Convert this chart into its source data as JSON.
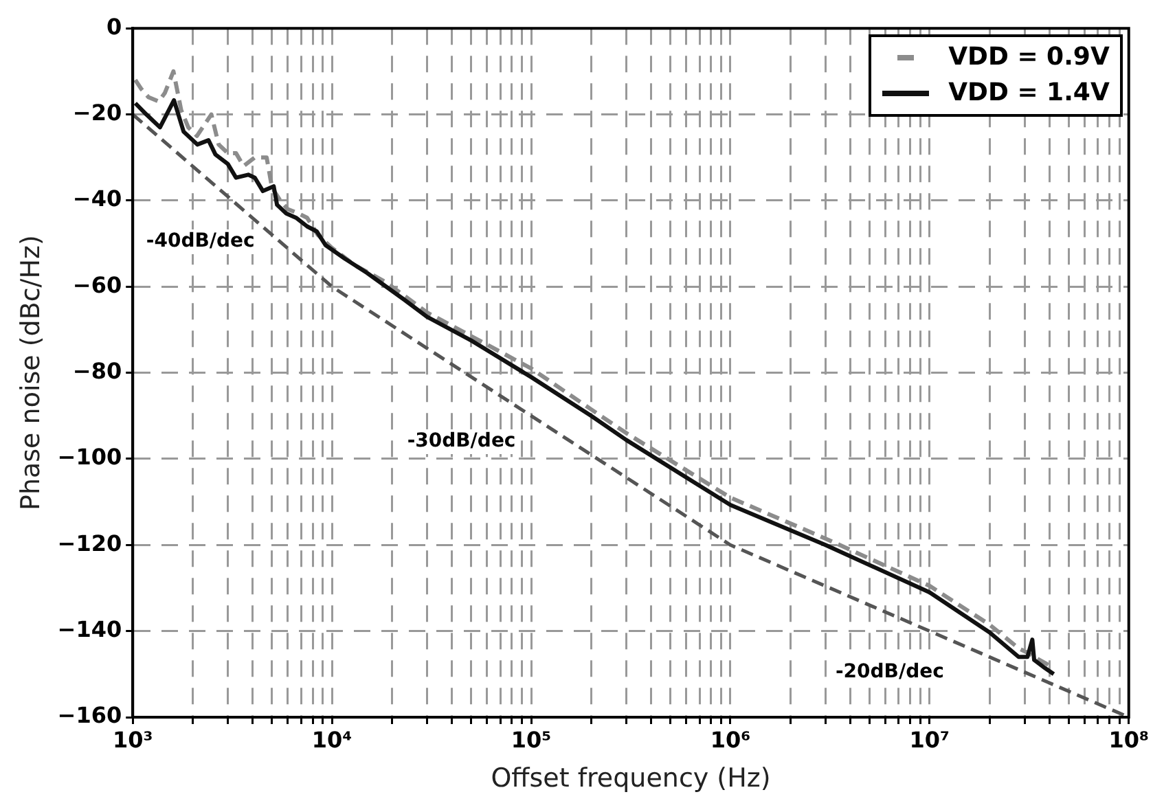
{
  "chart_data": {
    "type": "line",
    "xlabel": "Offset frequency (Hz)",
    "ylabel": "Phase noise (dBc/Hz)",
    "log": "x",
    "grid": true,
    "legend": "top right",
    "xlim": [
      1000,
      100000000
    ],
    "ylim": [
      -160,
      0
    ],
    "xticks": [
      {
        "value": 1000,
        "label": "10³"
      },
      {
        "value": 2000,
        "label": null
      },
      {
        "value": 3000,
        "label": null
      },
      {
        "value": 4000,
        "label": null
      },
      {
        "value": 5000,
        "label": null
      },
      {
        "value": 6000,
        "label": null
      },
      {
        "value": 7000,
        "label": null
      },
      {
        "value": 8000,
        "label": null
      },
      {
        "value": 9000,
        "label": null
      },
      {
        "value": 10000,
        "label": "10⁴"
      },
      {
        "value": 20000,
        "label": null
      },
      {
        "value": 30000,
        "label": null
      },
      {
        "value": 40000,
        "label": null
      },
      {
        "value": 50000,
        "label": null
      },
      {
        "value": 60000,
        "label": null
      },
      {
        "value": 70000,
        "label": null
      },
      {
        "value": 80000,
        "label": null
      },
      {
        "value": 90000,
        "label": null
      },
      {
        "value": 100000,
        "label": "10⁵"
      },
      {
        "value": 200000,
        "label": null
      },
      {
        "value": 300000,
        "label": null
      },
      {
        "value": 400000,
        "label": null
      },
      {
        "value": 500000,
        "label": null
      },
      {
        "value": 600000,
        "label": null
      },
      {
        "value": 700000,
        "label": null
      },
      {
        "value": 800000,
        "label": null
      },
      {
        "value": 900000,
        "label": null
      },
      {
        "value": 1000000,
        "label": "10⁶"
      },
      {
        "value": 2000000,
        "label": null
      },
      {
        "value": 3000000,
        "label": null
      },
      {
        "value": 4000000,
        "label": null
      },
      {
        "value": 5000000,
        "label": null
      },
      {
        "value": 6000000,
        "label": null
      },
      {
        "value": 7000000,
        "label": null
      },
      {
        "value": 8000000,
        "label": null
      },
      {
        "value": 9000000,
        "label": null
      },
      {
        "value": 10000000,
        "label": "10⁷"
      },
      {
        "value": 20000000,
        "label": null
      },
      {
        "value": 30000000,
        "label": null
      },
      {
        "value": 40000000,
        "label": null
      },
      {
        "value": 50000000,
        "label": null
      },
      {
        "value": 60000000,
        "label": null
      },
      {
        "value": 70000000,
        "label": null
      },
      {
        "value": 80000000,
        "label": null
      },
      {
        "value": 90000000,
        "label": null
      },
      {
        "value": 100000000,
        "label": "10⁸"
      }
    ],
    "yticks": [
      {
        "value": -160,
        "label": "−160"
      },
      {
        "value": -140,
        "label": "−140"
      },
      {
        "value": -120,
        "label": "−120"
      },
      {
        "value": -100,
        "label": "−100"
      },
      {
        "value": -80,
        "label": "−80"
      },
      {
        "value": -60,
        "label": "−60"
      },
      {
        "value": -40,
        "label": "−40"
      },
      {
        "value": -20,
        "label": "−20"
      },
      0
    ],
    "series": [
      {
        "name": "VDD = 0.9V",
        "color": "#8c8c8c",
        "line_style": "dashed",
        "x": [
          1030,
          1100,
          1200,
          1350,
          1450,
          1600,
          1750,
          1900,
          2100,
          2480,
          2700,
          3000,
          3300,
          3600,
          4100,
          4700,
          5000,
          5500,
          6000,
          6800,
          7500,
          8500,
          10000,
          13000,
          18700,
          30000,
          50000,
          100000,
          200000,
          300000,
          1000000,
          3000000,
          10000000,
          20000000,
          28000000,
          31000000,
          35000000,
          40000000
        ],
        "values": [
          -12,
          -14,
          -16,
          -17,
          -15,
          -10,
          -19,
          -23,
          -25,
          -20,
          -27,
          -29,
          -29,
          -32,
          -30,
          -30,
          -37,
          -40,
          -42,
          -43,
          -44,
          -48,
          -51,
          -55,
          -59,
          -66,
          -71.5,
          -79,
          -88.5,
          -94,
          -109,
          -118.5,
          -129.5,
          -138.5,
          -144,
          -145,
          -146.5,
          -148
        ]
      },
      {
        "name": "VDD = 1.4V",
        "color": "#111111",
        "line_style": "solid",
        "x": [
          1030,
          1170,
          1370,
          1610,
          1800,
          2110,
          2400,
          2600,
          3000,
          3300,
          3800,
          4100,
          4500,
          5100,
          5300,
          5900,
          6600,
          7500,
          8400,
          9300,
          11600,
          15000,
          23000,
          30000,
          50000,
          100000,
          200000,
          300000,
          1000000,
          3000000,
          10000000,
          20000000,
          28000000,
          31000000,
          32800000,
          33500000,
          38000000,
          42000000
        ],
        "values": [
          -17.4,
          -20,
          -23,
          -16.7,
          -24,
          -27,
          -26,
          -29.3,
          -31.5,
          -34.7,
          -34,
          -34.7,
          -37.8,
          -36.7,
          -41,
          -43,
          -44,
          -46,
          -47.2,
          -50.4,
          -53.5,
          -56.8,
          -63,
          -67,
          -72.5,
          -81,
          -90,
          -95.6,
          -110.7,
          -120,
          -131,
          -140.3,
          -146,
          -146,
          -142,
          -146.7,
          -148.6,
          -150
        ]
      },
      {
        "color": "#555555",
        "line_style": "dashed",
        "x": [
          1000,
          10000,
          1000000,
          100000000
        ],
        "values": [
          -20,
          -60,
          -120,
          -160
        ]
      }
    ],
    "annotations": [
      "-40dB/dec",
      "-30dB/dec",
      "-20dB/dec"
    ]
  }
}
